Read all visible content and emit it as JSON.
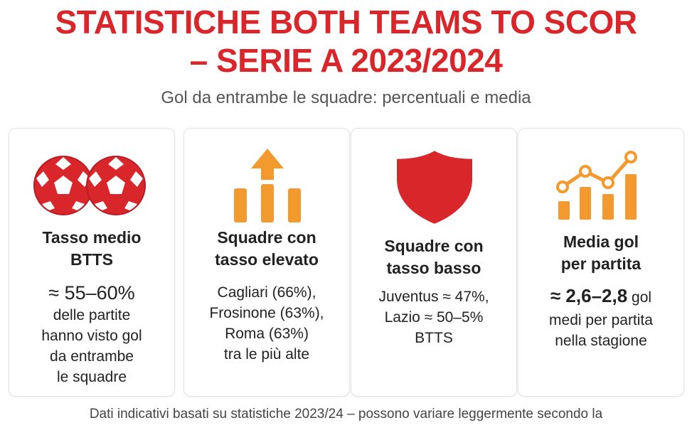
{
  "header": {
    "title_line1": "STATISTICHE BOTH TEAMS TO SCOR",
    "title_line2": "– SERIE A 2023/2024",
    "subtitle": "Gol da entrambe le squadre: percentuali e media"
  },
  "cards": [
    {
      "icon": "soccer-balls-icon",
      "title_line1": "Tasso medio",
      "title_line2": "BTTS",
      "highlight": "≈ 55–60%",
      "lines": [
        "delle partite",
        "hanno visto gol",
        "da entrambe",
        "le squadre"
      ]
    },
    {
      "icon": "bar-chart-up-arrow-icon",
      "title_line1": "Squadre con",
      "title_line2": "tasso elevato",
      "lines": [
        "Cagliari (66%),",
        "Frosinone (63%),",
        "Roma (63%)",
        "tra le più alte"
      ]
    },
    {
      "icon": "shield-icon",
      "title_line1": "Squadre con",
      "title_line2": "tasso basso",
      "lines": [
        "Juventus ≈ 47%,",
        "Lazio ≈ 50–5%",
        "BTTS"
      ]
    },
    {
      "icon": "line-bar-chart-icon",
      "title_line1": "Media gol",
      "title_line2": "per partita",
      "highlight": "≈ 2,6–2,8",
      "highlight_suffix": " gol",
      "lines": [
        "medi per partita",
        "nella stagione"
      ]
    }
  ],
  "colors": {
    "accent_red": "#d8262b",
    "accent_orange": "#f29a2e"
  },
  "footnote": "Dati indicativi basati su statistiche 2023/24 – possono variare leggermente secondo la"
}
